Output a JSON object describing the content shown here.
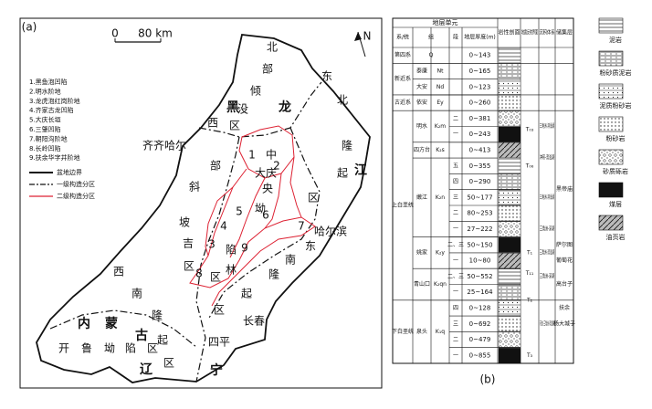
{
  "map": {
    "panel_label": "(a)",
    "scale": [
      "0",
      "80 km"
    ],
    "north": "N",
    "labels": [
      "北",
      "部",
      "倾",
      "没",
      "区",
      "东",
      "北",
      "隆",
      "起",
      "区",
      "黑",
      "龙",
      "江",
      "西",
      "齐齐哈尔",
      "部",
      "斜",
      "坡",
      "吉",
      "区",
      "中",
      "大庆",
      "央",
      "坳",
      "陷",
      "林",
      "区",
      "哈尔滨",
      "东",
      "南",
      "隆",
      "起",
      "区",
      "长春",
      "四平",
      "西",
      "南",
      "隆",
      "起",
      "区",
      "内",
      "蒙",
      "古",
      "辽",
      "宁",
      "开",
      "鲁",
      "坳",
      "陷",
      "区",
      "1",
      "2",
      "3",
      "4",
      "5",
      "6",
      "7",
      "8",
      "9"
    ],
    "legend": {
      "items": [
        "1.黑鱼泡凹陷",
        "2.明水阶地",
        "3.龙虎泡红岗阶地",
        "4.齐家古龙凹陷",
        "5.大庆长垣",
        "6.三肇凹陷",
        "7.朝阳沟阶地",
        "8.长岭凹陷",
        "9.扶余华字井阶地"
      ],
      "boundaries": [
        "盆地边界",
        "一级构造分区",
        "二级构造分区"
      ]
    }
  },
  "table": {
    "panel_label": "(b)",
    "header": {
      "unit": "地层单元",
      "system": "系/统",
      "formation": "组",
      "member": "段",
      "thickness": "地层厚度(m)",
      "lithology": "岩性剖面",
      "seismic": "地震反射界面",
      "sedimentary": "沉积体系",
      "reservoir": "储集层"
    },
    "systems": [
      {
        "name": "第四系",
        "formations": [
          {
            "code": "Q",
            "thickness": "0~143"
          }
        ]
      },
      {
        "name": "新近系",
        "formations": [
          {
            "name": "泰康",
            "code": "Nt",
            "thickness": "0~165"
          },
          {
            "name": "大安",
            "code": "Nd",
            "thickness": "0~123"
          }
        ]
      },
      {
        "name": "古近系",
        "formations": [
          {
            "name": "依安",
            "code": "Ey",
            "thickness": "0~260"
          }
        ]
      },
      {
        "name": "上白垩统",
        "formations": [
          {
            "name": "明水",
            "code": "K₂m",
            "members": [
              {
                "name": "二",
                "thickness": "0~381"
              },
              {
                "name": "一",
                "thickness": "0~243"
              }
            ]
          },
          {
            "name": "四方台",
            "code": "K₂s",
            "thickness": "0~413"
          },
          {
            "name": "嫩江",
            "code": "K₂n",
            "members": [
              {
                "name": "五",
                "thickness": "0~355"
              },
              {
                "name": "四",
                "thickness": "0~290"
              },
              {
                "name": "三",
                "thickness": "50~177"
              },
              {
                "name": "二",
                "thickness": "80~253"
              },
              {
                "name": "一",
                "thickness": "27~222"
              }
            ]
          },
          {
            "name": "姚家",
            "code": "K₂y",
            "members": [
              {
                "name": "二、三",
                "thickness": "50~150"
              },
              {
                "name": "一",
                "thickness": "10~80"
              }
            ]
          },
          {
            "name": "青山口",
            "code": "K₂qn",
            "members": [
              {
                "name": "二、三",
                "thickness": "50~552"
              },
              {
                "name": "一",
                "thickness": "25~164"
              }
            ]
          }
        ]
      },
      {
        "name": "下白垩统",
        "formations": [
          {
            "name": "泉头",
            "code": "K₁q",
            "members": [
              {
                "name": "四",
                "thickness": "0~128"
              },
              {
                "name": "三",
                "thickness": "0~692"
              },
              {
                "name": "二",
                "thickness": "0~479"
              },
              {
                "name": "一",
                "thickness": "0~855"
              }
            ]
          }
        ]
      }
    ],
    "seismic": [
      "T₀₃",
      "T₀₆",
      "T₁",
      "T₁₁",
      "T₂",
      "T₃"
    ],
    "sedimentary": [
      "三角洲-滨浅湖",
      "冲积-滨浅湖",
      "三角洲-滨浅湖",
      "三角洲-深湖",
      "三角洲-滨浅湖",
      "三角洲-深湖",
      "河流-三角洲-滨浅湖"
    ],
    "reservoir": [
      "黑帝庙",
      "萨尔图",
      "葡萄花",
      "高台子",
      "扶余",
      "杨大城子"
    ],
    "legend": [
      "泥岩",
      "粉砂质泥岩",
      "泥质粉砂岩",
      "粉砂岩",
      "砂质砾岩",
      "煤层",
      "油页岩"
    ]
  }
}
